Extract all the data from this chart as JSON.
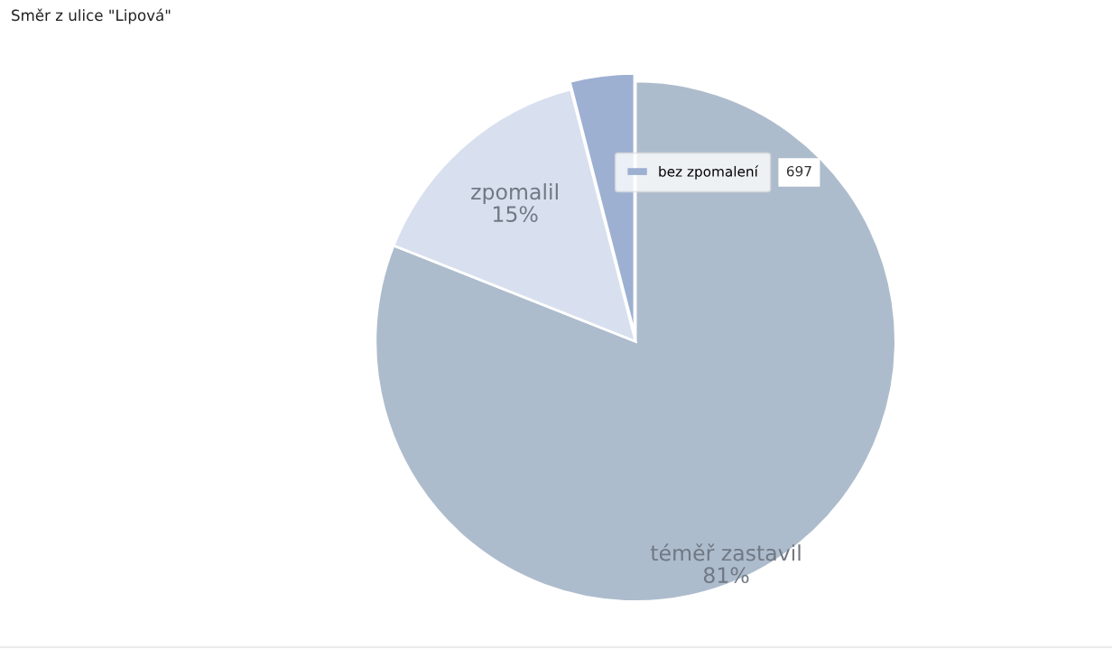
{
  "chart_data": {
    "type": "pie",
    "title": "Směr z ulice \"Lipová\"",
    "categories": [
      "téměř zastavil",
      "zpomalil",
      "bez zpomalení"
    ],
    "values": [
      81,
      15,
      4
    ],
    "value_labels": [
      "81%",
      "15%",
      null
    ],
    "colors": [
      "#adbccc",
      "#d8e0ef",
      "#9db0d2"
    ],
    "annotations": [
      "697"
    ],
    "legend": "top right"
  }
}
